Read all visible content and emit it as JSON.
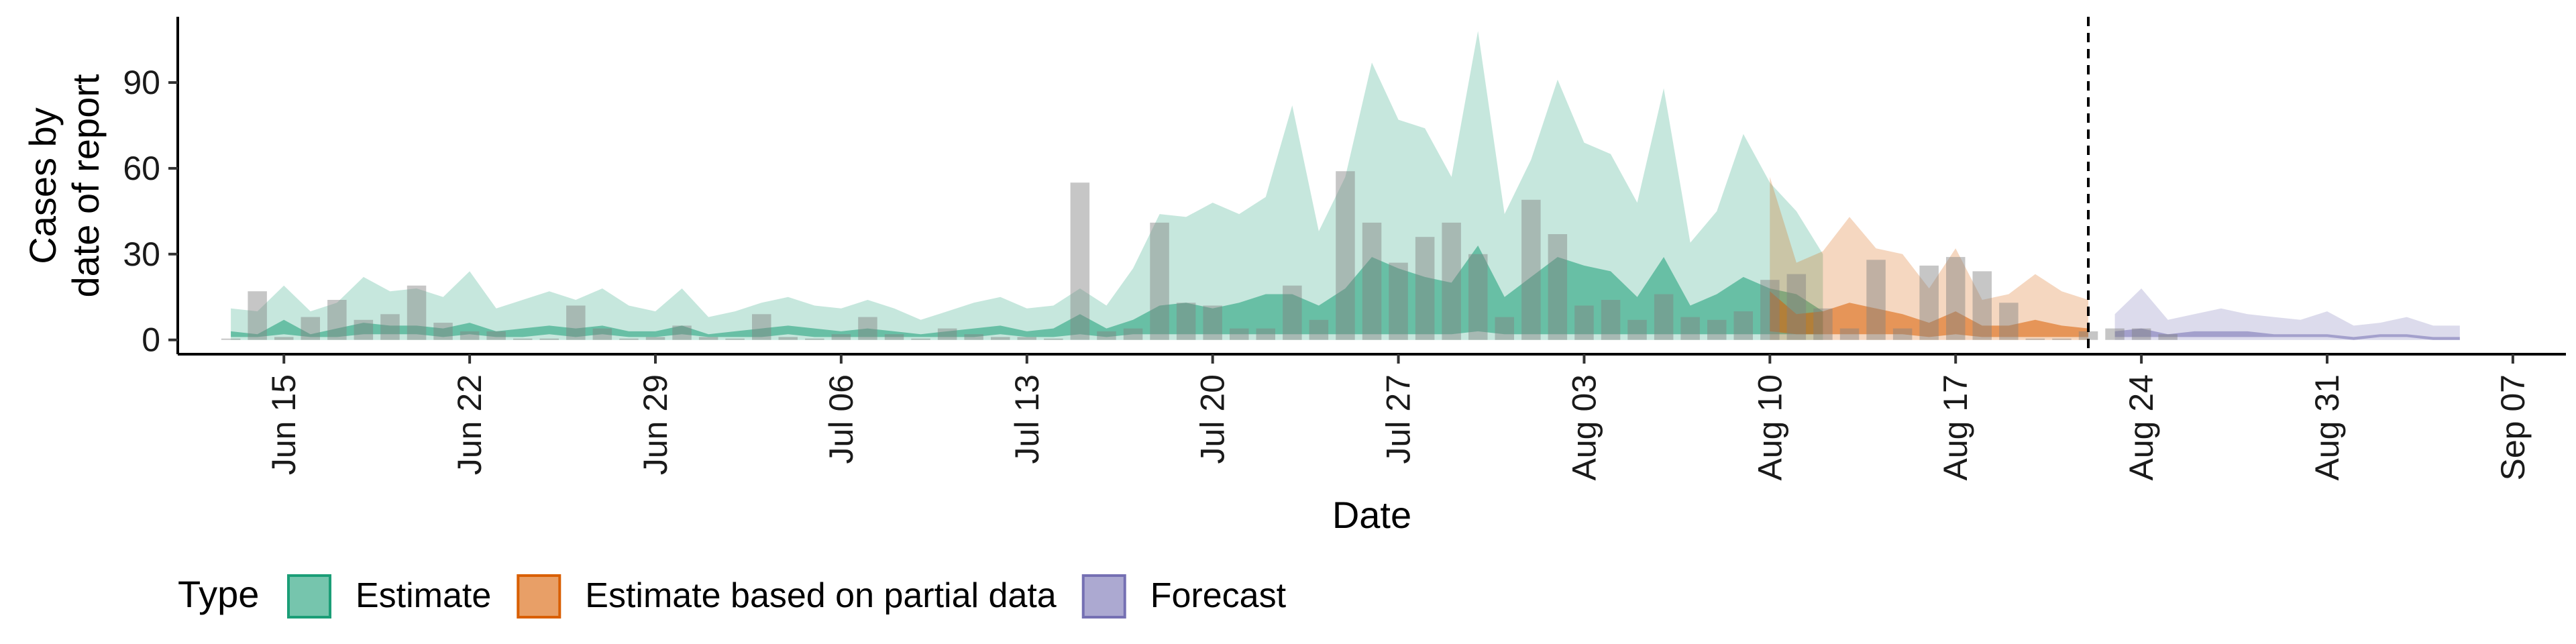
{
  "chart_data": {
    "type": "area",
    "xlabel": "Date",
    "ylabel": [
      "Cases by",
      "date of report"
    ],
    "ylim": [
      -5,
      113
    ],
    "yticks": [
      0,
      30,
      60,
      90
    ],
    "x_start": "2020-06-11",
    "x_end": "2020-09-09",
    "xticks": [
      "Jun 15",
      "Jun 22",
      "Jun 29",
      "Jul 06",
      "Jul 13",
      "Jul 20",
      "Jul 27",
      "Aug 03",
      "Aug 10",
      "Aug 17",
      "Aug 24",
      "Aug 31",
      "Sep 07"
    ],
    "xtick_dates": [
      "2020-06-15",
      "2020-06-22",
      "2020-06-29",
      "2020-07-06",
      "2020-07-13",
      "2020-07-20",
      "2020-07-27",
      "2020-08-03",
      "2020-08-10",
      "2020-08-17",
      "2020-08-24",
      "2020-08-31",
      "2020-09-07"
    ],
    "forecast_line_date": "2020-08-22",
    "grid": false,
    "legend_position": "bottom",
    "legend_title": "Type",
    "series": [
      {
        "name": "Estimate",
        "color": "#1b9e77",
        "start_date": "2020-06-13",
        "upper90": [
          11,
          10,
          19,
          10,
          13,
          22,
          17,
          18,
          15,
          24,
          11,
          14,
          17,
          14,
          18,
          12,
          10,
          18,
          8,
          10,
          13,
          15,
          12,
          11,
          14,
          11,
          7,
          10,
          13,
          15,
          11,
          12,
          18,
          12,
          25,
          44,
          43,
          48,
          44,
          50,
          82,
          38,
          57,
          97,
          77,
          74,
          57,
          108,
          44,
          63,
          91,
          69,
          65,
          48,
          88,
          34,
          45,
          72,
          55,
          45,
          30
        ],
        "upper50": [
          3,
          2,
          7,
          2,
          4,
          6,
          5,
          5,
          4,
          6,
          3,
          4,
          5,
          4,
          5,
          3,
          3,
          5,
          2,
          3,
          4,
          5,
          4,
          3,
          4,
          3,
          2,
          3,
          4,
          5,
          3,
          4,
          9,
          4,
          7,
          12,
          13,
          11,
          13,
          16,
          16,
          12,
          18,
          29,
          25,
          22,
          20,
          33,
          15,
          22,
          29,
          26,
          24,
          15,
          29,
          12,
          16,
          22,
          18,
          16,
          10
        ],
        "lower50": [
          1,
          1,
          2,
          1,
          1,
          2,
          2,
          2,
          1,
          2,
          1,
          1,
          2,
          1,
          2,
          1,
          1,
          2,
          1,
          1,
          1,
          2,
          1,
          1,
          1,
          1,
          1,
          1,
          1,
          2,
          1,
          1,
          2,
          1,
          2,
          2,
          2,
          2,
          2,
          2,
          2,
          2,
          2,
          2,
          2,
          2,
          2,
          3,
          2,
          2,
          2,
          2,
          2,
          2,
          2,
          2,
          2,
          2,
          2,
          2,
          2
        ],
        "lower90": [
          0,
          0,
          0,
          0,
          0,
          0,
          0,
          0,
          0,
          0,
          0,
          0,
          0,
          0,
          0,
          0,
          0,
          0,
          0,
          0,
          0,
          0,
          0,
          0,
          0,
          0,
          0,
          0,
          0,
          0,
          0,
          0,
          0,
          0,
          0,
          0,
          0,
          0,
          0,
          0,
          0,
          0,
          0,
          0,
          0,
          0,
          0,
          0,
          0,
          0,
          0,
          0,
          0,
          0,
          0,
          0,
          0,
          0,
          0,
          0,
          0
        ]
      },
      {
        "name": "Estimate based on partial data",
        "color": "#d95f02",
        "start_date": "2020-08-10",
        "upper90": [
          57,
          27,
          31,
          43,
          32,
          30,
          18,
          32,
          14,
          16,
          23,
          17,
          14
        ],
        "upper50": [
          17,
          9,
          10,
          13,
          11,
          9,
          6,
          10,
          5,
          5,
          7,
          5,
          4
        ],
        "lower50": [
          3,
          2,
          2,
          2,
          2,
          2,
          1,
          2,
          1,
          1,
          1,
          1,
          1
        ],
        "lower90": [
          0,
          0,
          0,
          0,
          0,
          0,
          0,
          0,
          0,
          0,
          0,
          0,
          0
        ]
      },
      {
        "name": "Forecast",
        "color": "#7570b3",
        "start_date": "2020-08-23",
        "upper90": [
          9,
          18,
          7,
          9,
          11,
          9,
          8,
          7,
          10,
          5,
          6,
          8,
          5,
          5
        ],
        "upper50": [
          3,
          4,
          2,
          3,
          3,
          3,
          2,
          2,
          2,
          1,
          2,
          2,
          1,
          1
        ],
        "lower50": [
          1,
          1,
          1,
          1,
          1,
          1,
          1,
          1,
          1,
          0,
          1,
          1,
          0,
          0
        ],
        "lower90": [
          0,
          0,
          0,
          0,
          0,
          0,
          0,
          0,
          0,
          0,
          0,
          0,
          0,
          0
        ]
      }
    ],
    "reported_cases": {
      "color": "#808080",
      "start_date": "2020-06-13",
      "values": [
        0,
        17,
        1,
        8,
        14,
        7,
        9,
        19,
        6,
        3,
        3,
        0,
        0,
        12,
        4,
        0,
        1,
        5,
        1,
        0,
        9,
        1,
        0,
        2,
        8,
        2,
        0,
        4,
        2,
        1,
        1,
        0,
        55,
        3,
        4,
        41,
        13,
        12,
        4,
        4,
        19,
        7,
        59,
        41,
        27,
        36,
        41,
        30,
        8,
        49,
        37,
        12,
        14,
        7,
        16,
        8,
        7,
        10,
        21,
        23,
        11,
        4,
        28,
        4,
        26,
        29,
        24,
        13,
        0,
        0,
        3,
        4,
        4,
        2
      ]
    }
  }
}
